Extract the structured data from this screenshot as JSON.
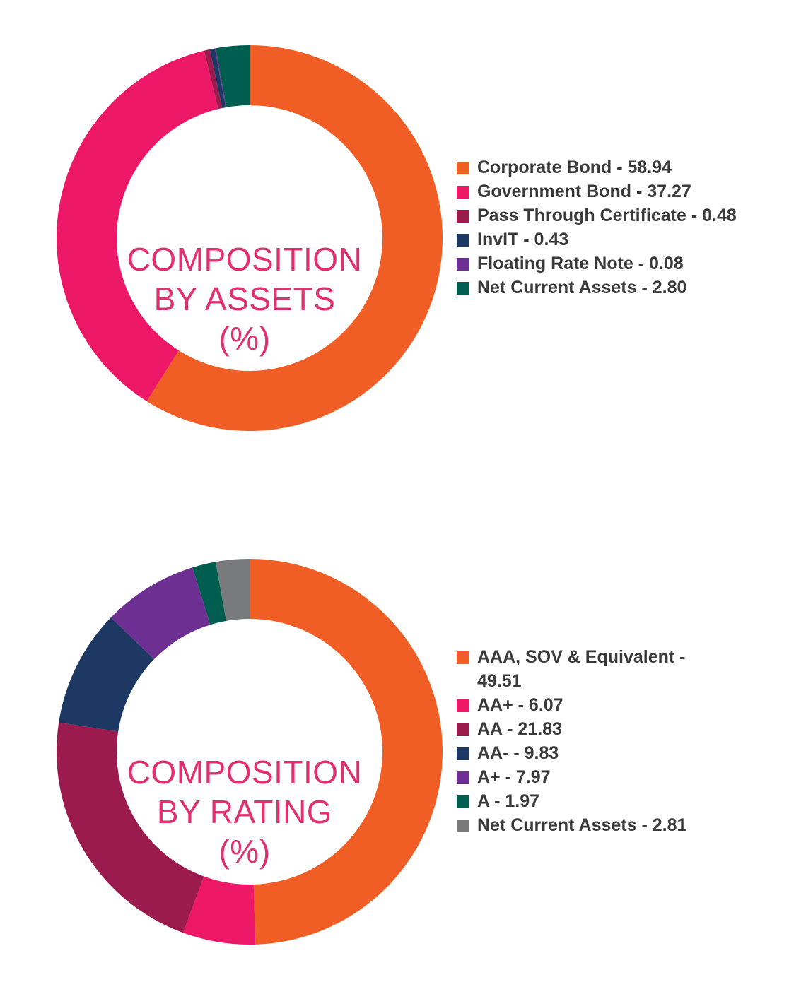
{
  "chart_data": [
    {
      "type": "pie",
      "title_lines": [
        "COMPOSITION",
        "BY ASSETS",
        "(%)"
      ],
      "slices": [
        {
          "label": "Corporate Bond - 58.94",
          "value": 58.94,
          "color": "#f05e25"
        },
        {
          "label": "Government Bond - 37.27",
          "value": 37.27,
          "color": "#ec1766"
        },
        {
          "label": "Pass Through Certificate - 0.48",
          "value": 0.48,
          "color": "#9b1b4e"
        },
        {
          "label": "InvIT - 0.43",
          "value": 0.43,
          "color": "#1c3863"
        },
        {
          "label": "Floating Rate Note - 0.08",
          "value": 0.08,
          "color": "#6e2f92"
        },
        {
          "label": "Net Current Assets - 2.80",
          "value": 2.8,
          "color": "#005e50"
        }
      ]
    },
    {
      "type": "pie",
      "title_lines": [
        "COMPOSITION",
        "BY RATING",
        "(%)"
      ],
      "slices": [
        {
          "label": "AAA, SOV & Equivalent - 49.51",
          "value": 49.51,
          "color": "#f05e25"
        },
        {
          "label": "AA+ - 6.07",
          "value": 6.07,
          "color": "#ec1766"
        },
        {
          "label": "AA - 21.83",
          "value": 21.83,
          "color": "#9b1b4e"
        },
        {
          "label": "AA- - 9.83",
          "value": 9.83,
          "color": "#1c3863"
        },
        {
          "label": "A+ - 7.97",
          "value": 7.97,
          "color": "#6e2f92"
        },
        {
          "label": "A - 1.97",
          "value": 1.97,
          "color": "#005e50"
        },
        {
          "label": "Net Current Assets - 2.81",
          "value": 2.81,
          "color": "#797a7c"
        }
      ]
    }
  ]
}
